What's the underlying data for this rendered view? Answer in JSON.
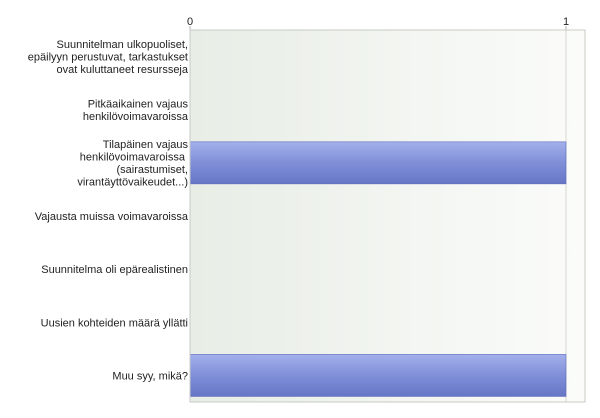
{
  "chart_data": {
    "type": "bar",
    "orientation": "horizontal",
    "title": "",
    "xlabel": "",
    "ylabel": "",
    "xlim": [
      0,
      1
    ],
    "x_ticks": [
      0,
      1
    ],
    "x_tick_labels": [
      "0",
      "1"
    ],
    "axis_position": "top",
    "grid": true,
    "legend": "none",
    "categories": [
      [
        "Suunnitelman ulkopuoliset,",
        "epäilyyn perustuvat, tarkastukset",
        "ovat kuluttaneet resursseja"
      ],
      [
        "Pitkäaikainen vajaus",
        "henkilövoimavaroissa"
      ],
      [
        "Tilapäinen vajaus",
        "henkilövoimavaroissa ",
        "(sairastumiset,",
        "virantäyttövaikeudet...)"
      ],
      [
        "Vajausta muissa voimavaroissa"
      ],
      [
        "Suunnitelma oli epärealistinen"
      ],
      [
        "Uusien kohteiden määrä yllätti"
      ],
      [
        "Muu syy, mikä?"
      ]
    ],
    "values": [
      0,
      0,
      1,
      0,
      0,
      0,
      1
    ],
    "colors": {
      "bar_fill": "#7f8fd8",
      "bar_edge": "#5a68b8",
      "plot_bg_left": "#e8ede6",
      "plot_bg_right": "#fbfcfa",
      "gridline": "#d5d8d2",
      "axis": "#b0b3ad"
    }
  }
}
